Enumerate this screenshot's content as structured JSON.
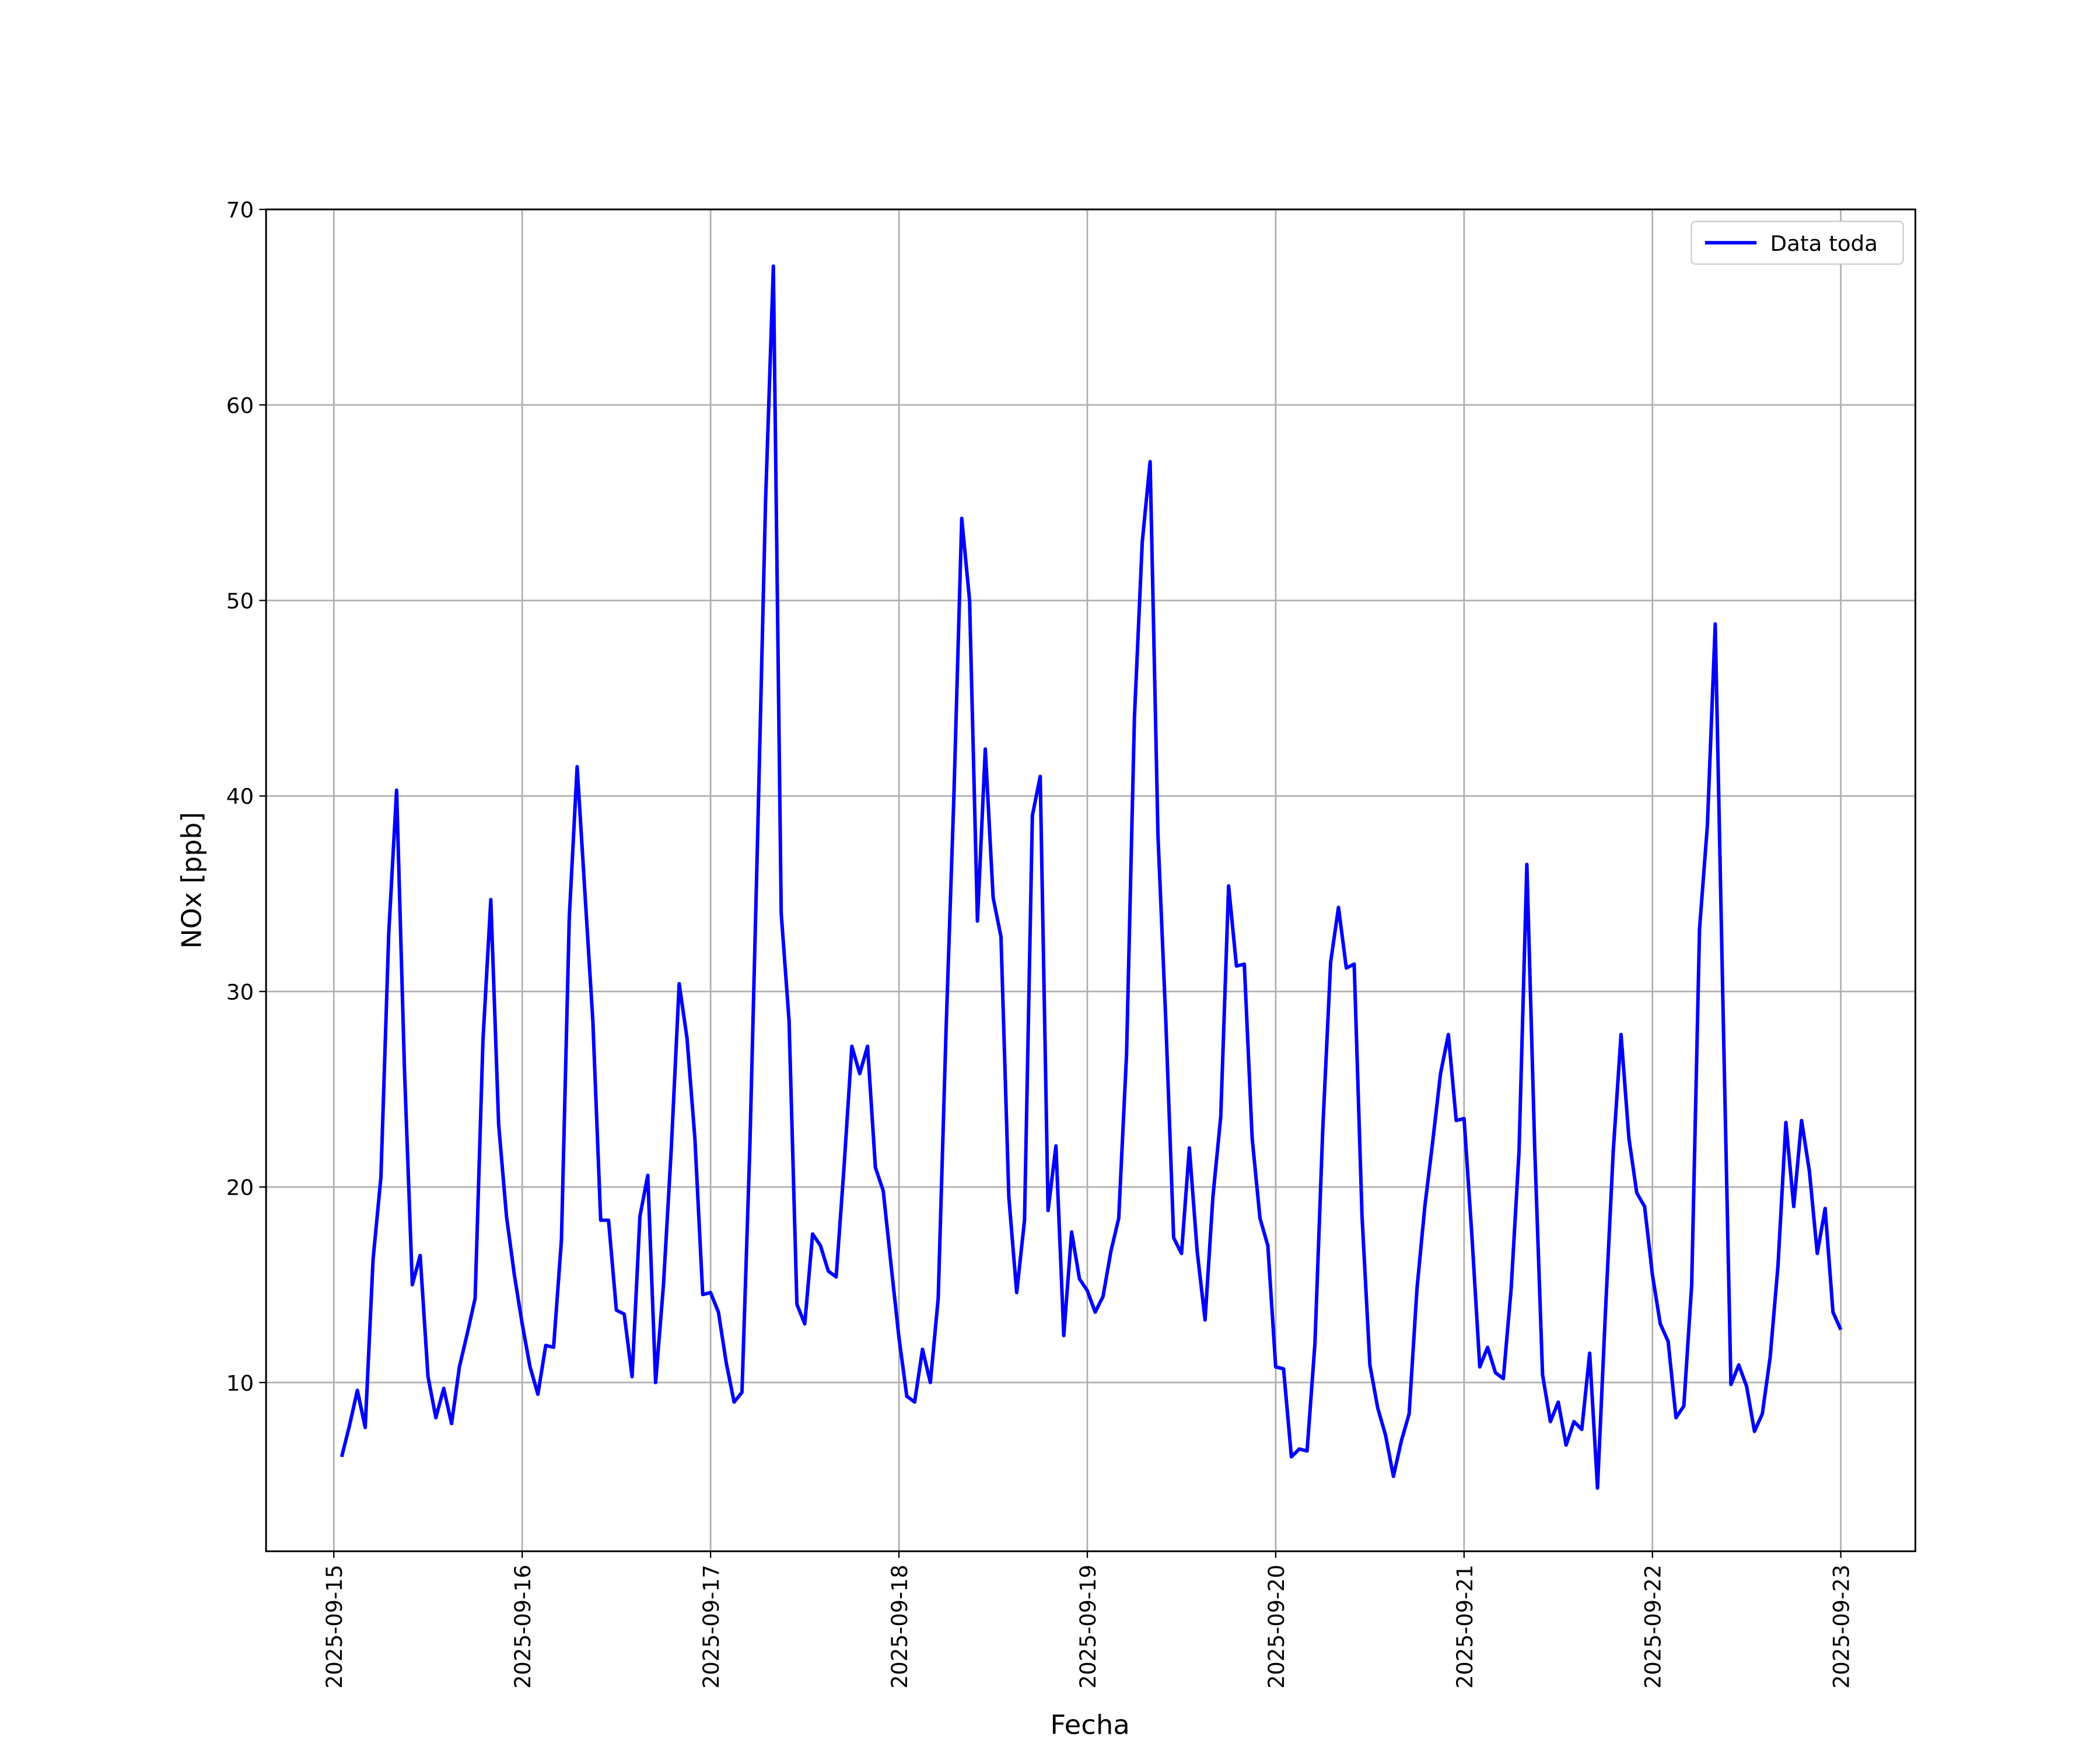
{
  "chart_data": {
    "type": "line",
    "xlabel": "Fecha",
    "ylabel": "NOx [ppb]",
    "x": [
      "2025-09-15T01:00",
      "2025-09-15T02:00",
      "2025-09-15T03:00",
      "2025-09-15T04:00",
      "2025-09-15T05:00",
      "2025-09-15T06:00",
      "2025-09-15T07:00",
      "2025-09-15T08:00",
      "2025-09-15T09:00",
      "2025-09-15T10:00",
      "2025-09-15T11:00",
      "2025-09-15T12:00",
      "2025-09-15T13:00",
      "2025-09-15T14:00",
      "2025-09-15T15:00",
      "2025-09-15T16:00",
      "2025-09-15T17:00",
      "2025-09-15T18:00",
      "2025-09-15T19:00",
      "2025-09-15T20:00",
      "2025-09-15T21:00",
      "2025-09-15T22:00",
      "2025-09-15T23:00",
      "2025-09-16T00:00",
      "2025-09-16T01:00",
      "2025-09-16T02:00",
      "2025-09-16T03:00",
      "2025-09-16T04:00",
      "2025-09-16T05:00",
      "2025-09-16T06:00",
      "2025-09-16T07:00",
      "2025-09-16T08:00",
      "2025-09-16T09:00",
      "2025-09-16T10:00",
      "2025-09-16T11:00",
      "2025-09-16T12:00",
      "2025-09-16T13:00",
      "2025-09-16T14:00",
      "2025-09-16T15:00",
      "2025-09-16T16:00",
      "2025-09-16T17:00",
      "2025-09-16T18:00",
      "2025-09-16T19:00",
      "2025-09-16T20:00",
      "2025-09-16T21:00",
      "2025-09-16T22:00",
      "2025-09-16T23:00",
      "2025-09-17T00:00",
      "2025-09-17T01:00",
      "2025-09-17T02:00",
      "2025-09-17T03:00",
      "2025-09-17T04:00",
      "2025-09-17T05:00",
      "2025-09-17T06:00",
      "2025-09-17T07:00",
      "2025-09-17T08:00",
      "2025-09-17T09:00",
      "2025-09-17T10:00",
      "2025-09-17T11:00",
      "2025-09-17T12:00",
      "2025-09-17T13:00",
      "2025-09-17T14:00",
      "2025-09-17T15:00",
      "2025-09-17T16:00",
      "2025-09-17T17:00",
      "2025-09-17T18:00",
      "2025-09-17T19:00",
      "2025-09-17T20:00",
      "2025-09-17T21:00",
      "2025-09-17T22:00",
      "2025-09-17T23:00",
      "2025-09-18T00:00",
      "2025-09-18T01:00",
      "2025-09-18T02:00",
      "2025-09-18T03:00",
      "2025-09-18T04:00",
      "2025-09-18T05:00",
      "2025-09-18T06:00",
      "2025-09-18T07:00",
      "2025-09-18T08:00",
      "2025-09-18T09:00",
      "2025-09-18T10:00",
      "2025-09-18T11:00",
      "2025-09-18T12:00",
      "2025-09-18T13:00",
      "2025-09-18T14:00",
      "2025-09-18T15:00",
      "2025-09-18T16:00",
      "2025-09-18T17:00",
      "2025-09-18T18:00",
      "2025-09-18T19:00",
      "2025-09-18T20:00",
      "2025-09-18T21:00",
      "2025-09-18T22:00",
      "2025-09-18T23:00",
      "2025-09-19T00:00",
      "2025-09-19T01:00",
      "2025-09-19T02:00",
      "2025-09-19T03:00",
      "2025-09-19T04:00",
      "2025-09-19T05:00",
      "2025-09-19T06:00",
      "2025-09-19T07:00",
      "2025-09-19T08:00",
      "2025-09-19T09:00",
      "2025-09-19T10:00",
      "2025-09-19T11:00",
      "2025-09-19T12:00",
      "2025-09-19T13:00",
      "2025-09-19T14:00",
      "2025-09-19T15:00",
      "2025-09-19T16:00",
      "2025-09-19T17:00",
      "2025-09-19T18:00",
      "2025-09-19T19:00",
      "2025-09-19T20:00",
      "2025-09-19T21:00",
      "2025-09-19T22:00",
      "2025-09-19T23:00",
      "2025-09-20T00:00",
      "2025-09-20T01:00",
      "2025-09-20T02:00",
      "2025-09-20T03:00",
      "2025-09-20T04:00",
      "2025-09-20T05:00",
      "2025-09-20T06:00",
      "2025-09-20T07:00",
      "2025-09-20T08:00",
      "2025-09-20T09:00",
      "2025-09-20T10:00",
      "2025-09-20T11:00",
      "2025-09-20T12:00",
      "2025-09-20T13:00",
      "2025-09-20T14:00",
      "2025-09-20T15:00",
      "2025-09-20T16:00",
      "2025-09-20T17:00",
      "2025-09-20T18:00",
      "2025-09-20T19:00",
      "2025-09-20T20:00",
      "2025-09-20T21:00",
      "2025-09-20T22:00",
      "2025-09-20T23:00",
      "2025-09-21T00:00",
      "2025-09-21T01:00",
      "2025-09-21T02:00",
      "2025-09-21T03:00",
      "2025-09-21T04:00",
      "2025-09-21T05:00",
      "2025-09-21T06:00",
      "2025-09-21T07:00",
      "2025-09-21T08:00",
      "2025-09-21T09:00",
      "2025-09-21T10:00",
      "2025-09-21T11:00",
      "2025-09-21T12:00",
      "2025-09-21T13:00",
      "2025-09-21T14:00",
      "2025-09-21T15:00",
      "2025-09-21T16:00",
      "2025-09-21T17:00",
      "2025-09-21T18:00",
      "2025-09-21T19:00",
      "2025-09-21T20:00",
      "2025-09-21T21:00",
      "2025-09-21T22:00",
      "2025-09-21T23:00",
      "2025-09-22T00:00",
      "2025-09-22T01:00",
      "2025-09-22T02:00",
      "2025-09-22T03:00",
      "2025-09-22T04:00",
      "2025-09-22T05:00",
      "2025-09-22T06:00",
      "2025-09-22T07:00",
      "2025-09-22T08:00",
      "2025-09-22T09:00",
      "2025-09-22T10:00",
      "2025-09-22T11:00",
      "2025-09-22T12:00",
      "2025-09-22T13:00",
      "2025-09-22T14:00",
      "2025-09-22T15:00",
      "2025-09-22T16:00",
      "2025-09-22T17:00",
      "2025-09-22T18:00",
      "2025-09-22T19:00",
      "2025-09-22T20:00",
      "2025-09-22T21:00",
      "2025-09-22T22:00",
      "2025-09-22T23:00",
      "2025-09-23T00:00"
    ],
    "series": [
      {
        "name": "Data toda",
        "color": "#0000ff",
        "values": [
          6.2,
          7.8,
          9.6,
          7.7,
          16.3,
          20.5,
          33,
          40.3,
          26,
          15,
          16.5,
          10.3,
          8.2,
          9.7,
          7.9,
          10.8,
          12.5,
          14.3,
          27.5,
          34.7,
          23.2,
          18.5,
          15.5,
          13,
          10.8,
          9.4,
          11.9,
          11.8,
          17.3,
          33.8,
          41.5,
          35,
          28.5,
          18.3,
          18.3,
          13.7,
          13.5,
          10.3,
          18.5,
          20.6,
          10,
          15,
          22,
          30.4,
          27.6,
          22.5,
          14.5,
          14.6,
          13.6,
          11,
          9,
          9.5,
          22,
          38,
          55,
          67.1,
          34,
          28.5,
          14,
          13,
          17.6,
          17,
          15.7,
          15.4,
          21,
          27.2,
          25.8,
          27.2,
          21,
          19.8,
          16,
          12.3,
          9.3,
          9,
          11.7,
          10,
          14.3,
          28,
          40,
          54.2,
          50,
          33.6,
          42.4,
          34.8,
          32.8,
          19.5,
          14.6,
          18.3,
          39,
          41,
          18.8,
          22.1,
          12.4,
          17.7,
          15.3,
          14.7,
          13.6,
          14.4,
          16.7,
          18.4,
          26.8,
          44,
          53,
          57.1,
          38,
          28.5,
          17.4,
          16.6,
          22,
          16.7,
          13.2,
          19.5,
          23.6,
          35.4,
          31.3,
          31.4,
          22.5,
          18.4,
          17,
          10.8,
          10.7,
          6.2,
          6.6,
          6.5,
          12,
          23,
          31.5,
          34.3,
          31.2,
          31.4,
          18.5,
          10.9,
          8.7,
          7.3,
          5.2,
          7,
          8.4,
          14.8,
          19,
          22.3,
          25.8,
          27.8,
          23.4,
          23.5,
          17.5,
          10.8,
          11.8,
          10.5,
          10.2,
          14.8,
          21.8,
          36.5,
          22,
          10.4,
          8,
          9,
          6.8,
          8,
          7.6,
          11.5,
          4.6,
          13.5,
          21.8,
          27.8,
          22.5,
          19.7,
          19,
          15.5,
          13,
          12.1,
          8.2,
          8.8,
          15,
          33.2,
          38.5,
          48.8,
          29,
          9.9,
          10.9,
          9.8,
          7.5,
          8.4,
          11.3,
          16,
          23.3,
          19,
          23.4,
          20.8,
          16.6,
          18.9,
          13.6,
          12.7
        ]
      }
    ],
    "xlim": [
      "2025-09-14T15:22",
      "2025-09-23T09:30"
    ],
    "xticks": [
      "2025-09-15",
      "2025-09-16",
      "2025-09-17",
      "2025-09-18",
      "2025-09-19",
      "2025-09-20",
      "2025-09-21",
      "2025-09-22",
      "2025-09-23"
    ],
    "ylim": [
      1.37,
      70
    ],
    "yticks": [
      10,
      20,
      30,
      40,
      50,
      60,
      70
    ],
    "grid": true,
    "legend": "upper right"
  }
}
